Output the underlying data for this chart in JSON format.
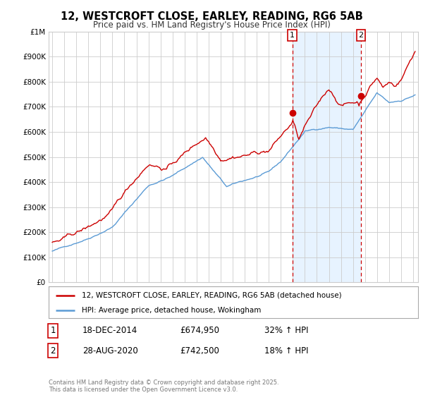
{
  "title": "12, WESTCROFT CLOSE, EARLEY, READING, RG6 5AB",
  "subtitle": "Price paid vs. HM Land Registry's House Price Index (HPI)",
  "red_color": "#cc0000",
  "blue_color": "#5b9bd5",
  "blue_shade_color": "#ddeeff",
  "dashed_color": "#cc0000",
  "marker1_date": 2014.96,
  "marker2_date": 2020.66,
  "marker1_price": 674950,
  "marker2_price": 742500,
  "annotation1_label": "1",
  "annotation2_label": "2",
  "annotation1_date_str": "18-DEC-2014",
  "annotation2_date_str": "28-AUG-2020",
  "annotation1_price_str": "£674,950",
  "annotation2_price_str": "£742,500",
  "annotation1_pct": "32% ↑ HPI",
  "annotation2_pct": "18% ↑ HPI",
  "legend_line1": "12, WESTCROFT CLOSE, EARLEY, READING, RG6 5AB (detached house)",
  "legend_line2": "HPI: Average price, detached house, Wokingham",
  "footer": "Contains HM Land Registry data © Crown copyright and database right 2025.\nThis data is licensed under the Open Government Licence v3.0.",
  "background_color": "#ffffff",
  "grid_color": "#cccccc"
}
